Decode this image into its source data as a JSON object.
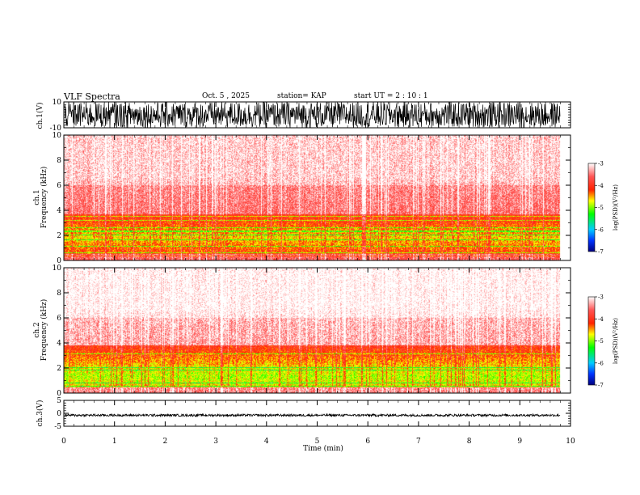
{
  "header": {
    "title": "VLF Spectra",
    "date": "Oct. 5 , 2025",
    "station": "station= KAP",
    "start_ut": "start  UT  =   2 : 10 : 1"
  },
  "chart_data": {
    "type": "heatmap",
    "title": "VLF Spectra",
    "xlabel": "Time  (min)",
    "xlim": [
      0,
      10
    ],
    "x_ticks": [
      0,
      1,
      2,
      3,
      4,
      5,
      6,
      7,
      8,
      9,
      10
    ],
    "data_end_min": 9.8,
    "panels": [
      {
        "name": "ch1-waveform",
        "type": "line",
        "ylabel": "ch.1(V)",
        "ylim": [
          -10,
          10
        ],
        "y_ticks": [
          -10,
          10
        ],
        "amplitude_range": [
          -10,
          10
        ]
      },
      {
        "name": "ch1-spectrogram",
        "type": "heatmap",
        "ylabel_channel": "ch.1",
        "ylabel": "Frequency  (kHz)",
        "ylim": [
          0,
          10
        ],
        "y_ticks": [
          0,
          2,
          4,
          6,
          8,
          10
        ],
        "band_low_khz": [
          0.5,
          3.7
        ],
        "band_peak_khz": 1.8,
        "harmonic_lines_khz": [
          0.3,
          0.6,
          1.1,
          1.6,
          2.0,
          2.3,
          2.6,
          3.2,
          3.5
        ],
        "background_level": -3.5,
        "band_level": -4.6
      },
      {
        "name": "ch2-spectrogram",
        "type": "heatmap",
        "ylabel_channel": "ch.2",
        "ylabel": "Frequency  (kHz)",
        "ylim": [
          0,
          10
        ],
        "y_ticks": [
          0,
          2,
          4,
          6,
          8,
          10
        ],
        "band_low_khz": [
          0.4,
          3.8
        ],
        "band_peak_khz": 1.3,
        "harmonic_lines_khz": [
          0.5,
          0.8,
          1.8,
          2.0,
          3.1
        ],
        "background_level": -3.3,
        "band_level": -4.9
      },
      {
        "name": "ch3-waveform",
        "type": "line",
        "ylabel": "ch.3(V)",
        "ylim": [
          -5,
          5
        ],
        "y_ticks": [
          -5,
          0,
          5
        ],
        "amplitude_range": [
          -1.2,
          -0.3
        ]
      }
    ],
    "colorbar": {
      "label": "log(PSD)(V²/Hz)",
      "range": [
        -7,
        -3
      ],
      "ticks": [
        -3,
        -4,
        -5,
        -6,
        -7
      ],
      "stops": [
        {
          "v": -7,
          "color": "#000080"
        },
        {
          "v": -6.5,
          "color": "#0033ff"
        },
        {
          "v": -6,
          "color": "#00ccff"
        },
        {
          "v": -5.3,
          "color": "#00ff00"
        },
        {
          "v": -4.7,
          "color": "#ffff00"
        },
        {
          "v": -4.2,
          "color": "#ff2200"
        },
        {
          "v": -3.6,
          "color": "#ff5555"
        },
        {
          "v": -3,
          "color": "#ffffff"
        }
      ]
    }
  }
}
